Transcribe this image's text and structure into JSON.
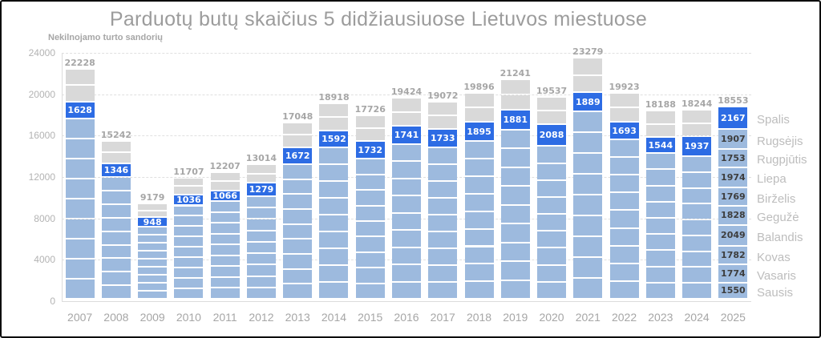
{
  "chart_data": {
    "type": "bar",
    "variant": "stacked-monthly-by-year",
    "title": "Parduotų butų skaičius 5 didžiausiuose Lietuvos miestuose",
    "subtitle": "Nekilnojamo turto sandorių",
    "ylim": [
      0,
      24000
    ],
    "yticks": [
      0,
      4000,
      8000,
      12000,
      16000,
      20000,
      24000
    ],
    "grid": "horizontal-dashed",
    "legend_position": "none",
    "highlighted_month": "Spalis",
    "years": [
      {
        "year": "2007",
        "total": 22228,
        "october": 1628
      },
      {
        "year": "2008",
        "total": 15242,
        "october": 1346
      },
      {
        "year": "2009",
        "total": 9179,
        "october": 948
      },
      {
        "year": "2010",
        "total": 11707,
        "october": 1036
      },
      {
        "year": "2011",
        "total": 12207,
        "october": 1066
      },
      {
        "year": "2012",
        "total": 13014,
        "october": 1279
      },
      {
        "year": "2013",
        "total": 17048,
        "october": 1672
      },
      {
        "year": "2014",
        "total": 18918,
        "october": 1592
      },
      {
        "year": "2015",
        "total": 17726,
        "october": 1732
      },
      {
        "year": "2016",
        "total": 19424,
        "october": 1741
      },
      {
        "year": "2017",
        "total": 19072,
        "october": 1733
      },
      {
        "year": "2018",
        "total": 19896,
        "october": 1895
      },
      {
        "year": "2019",
        "total": 21241,
        "october": 1881
      },
      {
        "year": "2020",
        "total": 19537,
        "october": 2088
      },
      {
        "year": "2021",
        "total": 23279,
        "october": 1889
      },
      {
        "year": "2022",
        "total": 19923,
        "october": 1693
      },
      {
        "year": "2023",
        "total": 18188,
        "october": 1544
      },
      {
        "year": "2024",
        "total": 18244,
        "october": 1937
      },
      {
        "year": "2025",
        "total": 18553,
        "october": 2167,
        "months": [
          {
            "label": "Sausis",
            "value": 1550
          },
          {
            "label": "Vasaris",
            "value": 1774
          },
          {
            "label": "Kovas",
            "value": 1782
          },
          {
            "label": "Balandis",
            "value": 2049
          },
          {
            "label": "Gegužė",
            "value": 1828
          },
          {
            "label": "Birželis",
            "value": 1769
          },
          {
            "label": "Liepa",
            "value": 1974
          },
          {
            "label": "Rugpjūtis",
            "value": 1753
          },
          {
            "label": "Rugsėjis",
            "value": 1907
          },
          {
            "label": "Spalis",
            "value": 2167,
            "highlight": true
          }
        ]
      }
    ],
    "colors": {
      "month_fill": "#9dbade",
      "highlight_fill": "#2d6ce4",
      "nov_dec_fill": "#d9d9d9",
      "total_label": "#a6a6a6",
      "axis_label": "#b3b3b3",
      "year_label": "#a6a6a6",
      "right_month_label": "#bdbdbd",
      "inner_value_label": "#3d3d3d",
      "title": "#9c9c9c"
    }
  }
}
